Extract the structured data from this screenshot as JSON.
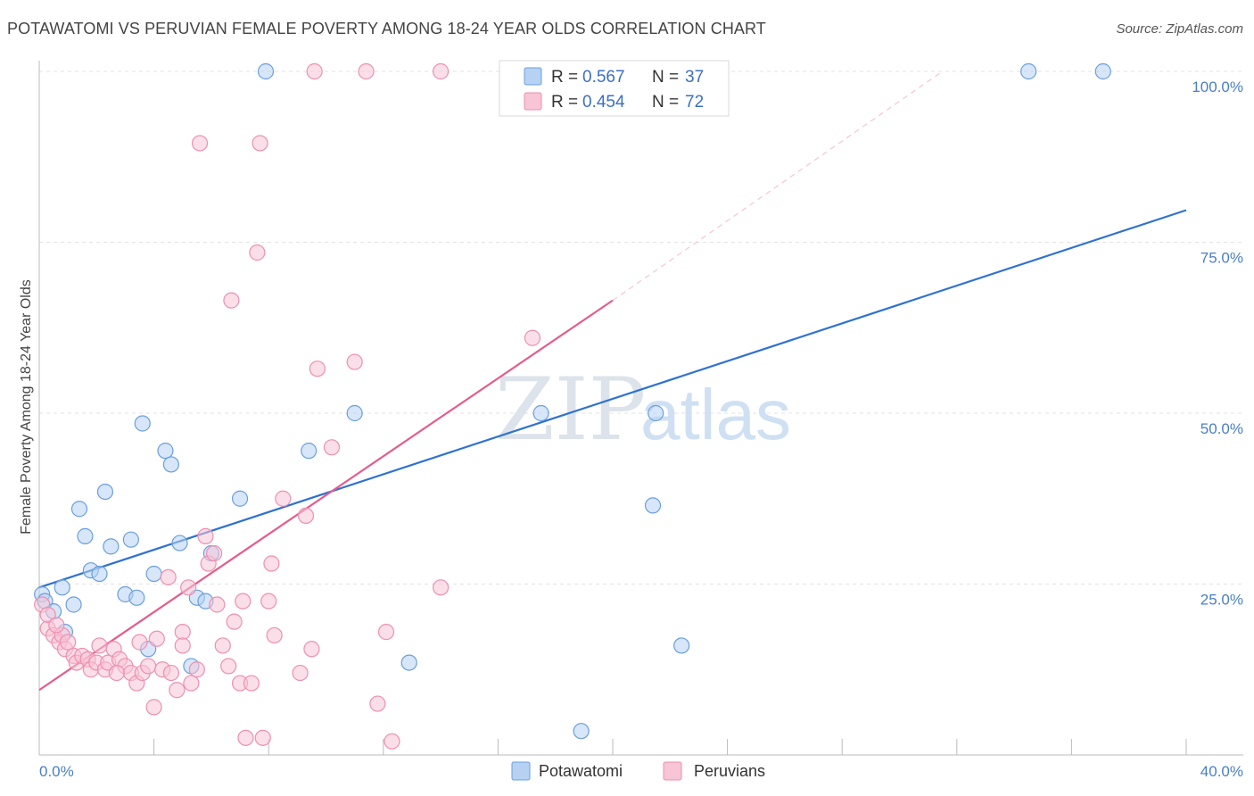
{
  "title": "POTAWATOMI VS PERUVIAN FEMALE POVERTY AMONG 18-24 YEAR OLDS CORRELATION CHART",
  "source": "Source: ZipAtlas.com",
  "watermark": {
    "zip": "ZIP",
    "atlas": "atlas"
  },
  "chart_data": {
    "type": "scatter",
    "title": "POTAWATOMI VS PERUVIAN FEMALE POVERTY AMONG 18-24 YEAR OLDS CORRELATION CHART",
    "xlabel": "",
    "ylabel": "Female Poverty Among 18-24 Year Olds",
    "xlim": [
      0,
      40
    ],
    "ylim": [
      0,
      100
    ],
    "x_tick_labels": {
      "min": "0.0%",
      "max": "40.0%"
    },
    "y_ticks": [
      {
        "value": 100,
        "label": "100.0%"
      },
      {
        "value": 75,
        "label": "75.0%"
      },
      {
        "value": 50,
        "label": "50.0%"
      },
      {
        "value": 25,
        "label": "25.0%"
      }
    ],
    "grid": true,
    "legend": {
      "placement": "top-center",
      "entries": [
        {
          "r_label": "R =",
          "r_value": "0.567",
          "n_label": "N =",
          "n_value": "37"
        },
        {
          "r_label": "R =",
          "r_value": "0.454",
          "n_label": "N =",
          "n_value": "72"
        }
      ]
    },
    "bottom_legend": [
      "Potawatomi",
      "Peruvians"
    ],
    "series": [
      {
        "name": "Potawatomi",
        "color": "#6a9fe0",
        "fill": "#b6d1f2",
        "trend_color": "#2f72cf",
        "trend": [
          [
            0,
            24.5
          ],
          [
            40,
            79.7
          ]
        ],
        "points": [
          [
            0.1,
            23.5
          ],
          [
            0.2,
            22.5
          ],
          [
            0.5,
            21.0
          ],
          [
            0.8,
            24.5
          ],
          [
            0.9,
            18.0
          ],
          [
            1.2,
            22.0
          ],
          [
            1.4,
            36.0
          ],
          [
            1.6,
            32.0
          ],
          [
            1.8,
            27.0
          ],
          [
            2.1,
            26.5
          ],
          [
            2.3,
            38.5
          ],
          [
            2.5,
            30.5
          ],
          [
            3.0,
            23.5
          ],
          [
            3.2,
            31.5
          ],
          [
            3.4,
            23.0
          ],
          [
            3.6,
            48.5
          ],
          [
            3.8,
            15.5
          ],
          [
            4.0,
            26.5
          ],
          [
            4.4,
            44.5
          ],
          [
            4.6,
            42.5
          ],
          [
            4.9,
            31.0
          ],
          [
            5.3,
            13.0
          ],
          [
            5.5,
            23.0
          ],
          [
            5.8,
            22.5
          ],
          [
            6.0,
            29.5
          ],
          [
            7.0,
            37.5
          ],
          [
            7.9,
            100.0
          ],
          [
            9.4,
            44.5
          ],
          [
            11.0,
            50.0
          ],
          [
            12.9,
            13.5
          ],
          [
            17.5,
            50.0
          ],
          [
            18.9,
            3.5
          ],
          [
            21.4,
            36.5
          ],
          [
            21.5,
            50.0
          ],
          [
            22.4,
            16.0
          ],
          [
            34.5,
            100.0
          ],
          [
            37.1,
            100.0
          ]
        ]
      },
      {
        "name": "Peruvians",
        "color": "#ee8fb0",
        "fill": "#f7c5d5",
        "trend_color": "#e35d8e",
        "trend": [
          [
            0,
            9.5
          ],
          [
            20,
            66.5
          ]
        ],
        "trend_extension": [
          [
            20,
            66.5
          ],
          [
            31.5,
            100
          ]
        ],
        "points": [
          [
            0.1,
            22.0
          ],
          [
            0.3,
            18.5
          ],
          [
            0.5,
            17.5
          ],
          [
            0.7,
            16.5
          ],
          [
            0.8,
            17.5
          ],
          [
            0.9,
            15.5
          ],
          [
            1.0,
            16.5
          ],
          [
            1.2,
            14.5
          ],
          [
            1.3,
            13.5
          ],
          [
            1.5,
            14.5
          ],
          [
            1.7,
            14.0
          ],
          [
            1.8,
            12.5
          ],
          [
            2.0,
            13.5
          ],
          [
            2.1,
            16.0
          ],
          [
            2.3,
            12.5
          ],
          [
            2.4,
            13.5
          ],
          [
            2.6,
            15.5
          ],
          [
            2.8,
            14.0
          ],
          [
            3.0,
            13.0
          ],
          [
            3.2,
            12.0
          ],
          [
            3.4,
            10.5
          ],
          [
            3.5,
            16.5
          ],
          [
            3.6,
            12.0
          ],
          [
            3.8,
            13.0
          ],
          [
            4.0,
            7.0
          ],
          [
            4.1,
            17.0
          ],
          [
            4.3,
            12.5
          ],
          [
            4.5,
            26.0
          ],
          [
            4.6,
            12.0
          ],
          [
            4.8,
            9.5
          ],
          [
            5.0,
            18.0
          ],
          [
            5.0,
            16.0
          ],
          [
            5.2,
            24.5
          ],
          [
            5.3,
            10.5
          ],
          [
            5.5,
            12.5
          ],
          [
            5.6,
            89.5
          ],
          [
            5.8,
            32.0
          ],
          [
            5.9,
            28.0
          ],
          [
            6.1,
            29.5
          ],
          [
            6.2,
            22.0
          ],
          [
            6.4,
            16.0
          ],
          [
            6.6,
            13.0
          ],
          [
            6.7,
            66.5
          ],
          [
            6.8,
            19.5
          ],
          [
            7.0,
            10.5
          ],
          [
            7.1,
            22.5
          ],
          [
            7.2,
            2.5
          ],
          [
            7.4,
            10.5
          ],
          [
            7.6,
            73.5
          ],
          [
            7.7,
            89.5
          ],
          [
            7.8,
            2.5
          ],
          [
            8.0,
            22.5
          ],
          [
            8.1,
            28.0
          ],
          [
            8.2,
            17.5
          ],
          [
            8.5,
            37.5
          ],
          [
            9.1,
            12.0
          ],
          [
            9.3,
            35.0
          ],
          [
            9.5,
            15.5
          ],
          [
            9.6,
            100.0
          ],
          [
            9.7,
            56.5
          ],
          [
            10.2,
            45.0
          ],
          [
            11.0,
            57.5
          ],
          [
            11.4,
            100.0
          ],
          [
            11.8,
            7.5
          ],
          [
            12.1,
            18.0
          ],
          [
            12.3,
            2.0
          ],
          [
            14.0,
            100.0
          ],
          [
            14.0,
            24.5
          ],
          [
            17.2,
            61.0
          ],
          [
            0.3,
            20.5
          ],
          [
            0.6,
            19.0
          ],
          [
            2.7,
            12.0
          ]
        ]
      }
    ]
  }
}
